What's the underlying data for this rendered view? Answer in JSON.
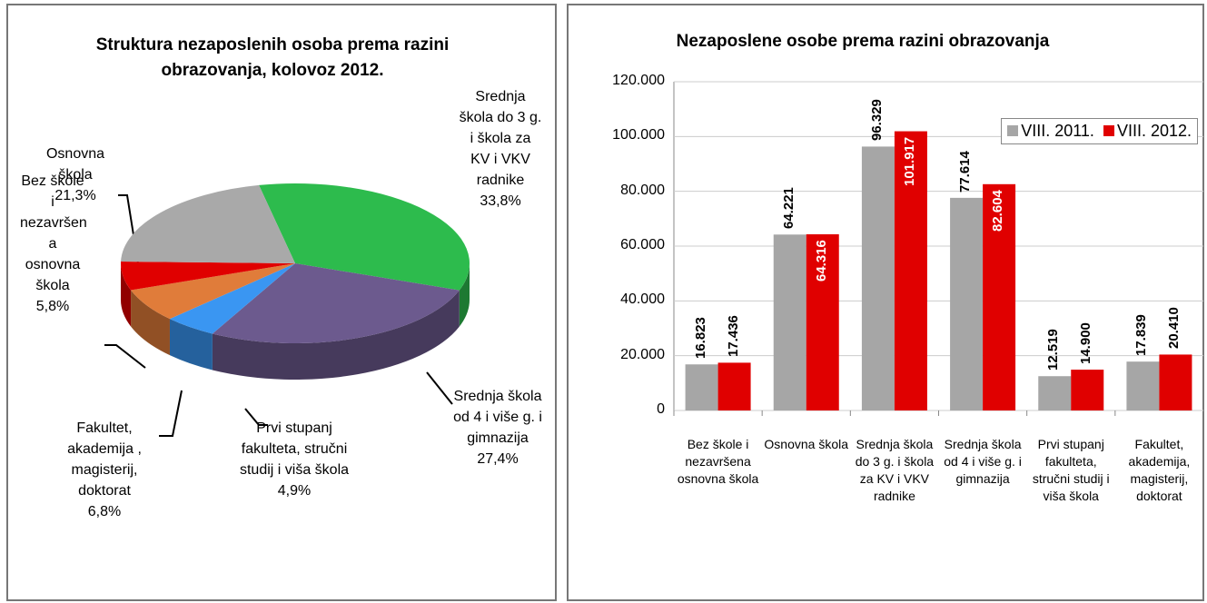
{
  "chart_data": [
    {
      "type": "pie",
      "title": "Struktura nezaposlenih osoba prema razini obrazovanja,  kolovoz 2012.",
      "categories": [
        "Srednja škola do 3 g. i škola za KV i VKV radnike",
        "Srednja škola od 4 i više g. i gimnazija",
        "Prvi stupanj fakulteta, stručni studij i viša škola",
        "Fakultet, akademija , magisterij, doktorat",
        "Bez škole i nezavršen a osnovna škola",
        "Osnovna škola"
      ],
      "values": [
        33.8,
        27.4,
        4.9,
        6.8,
        5.8,
        21.3
      ],
      "value_labels": [
        "33,8%",
        "27,4%",
        "4,9%",
        "6,8%",
        "5,8%",
        "21,3%"
      ],
      "colors": [
        "#2dbb4d",
        "#6c5a8e",
        "#3a96f2",
        "#e07c3a",
        "#e00000",
        "#a9a9a9"
      ]
    },
    {
      "type": "bar",
      "title": "Nezaposlene osobe prema razini obrazovanja",
      "categories": [
        "Bez škole i nezavršena osnovna škola",
        "Osnovna škola",
        "Srednja škola do 3 g. i škola za KV i VKV radnike",
        "Srednja škola od 4 i više g. i gimnazija",
        "Prvi stupanj fakulteta, stručni studij i viša škola",
        "Fakultet, akademija, magisterij, doktorat"
      ],
      "series": [
        {
          "name": "VIII. 2011.",
          "color": "#a6a6a6",
          "values": [
            16823,
            64221,
            96329,
            77614,
            12519,
            17839
          ],
          "value_labels": [
            "16.823",
            "64.221",
            "96.329",
            "77.614",
            "12.519",
            "17.839"
          ]
        },
        {
          "name": "VIII. 2012.",
          "color": "#e00000",
          "values": [
            17436,
            64316,
            101917,
            82604,
            14900,
            20410
          ],
          "value_labels": [
            "17.436",
            "64.316",
            "101.917",
            "82.604",
            "14.900",
            "20.410"
          ]
        }
      ],
      "ylim": [
        0,
        120000
      ],
      "yticks": [
        0,
        {
          "value": 20000,
          "label": "20.000"
        },
        {
          "value": 40000,
          "label": "40.000"
        },
        {
          "value": 60000,
          "label": "60.000"
        },
        {
          "value": 80000,
          "label": "80.000"
        },
        {
          "value": 100000,
          "label": "100.000"
        },
        {
          "value": 120000,
          "label": "120.000"
        }
      ],
      "legend": "top-right"
    }
  ]
}
